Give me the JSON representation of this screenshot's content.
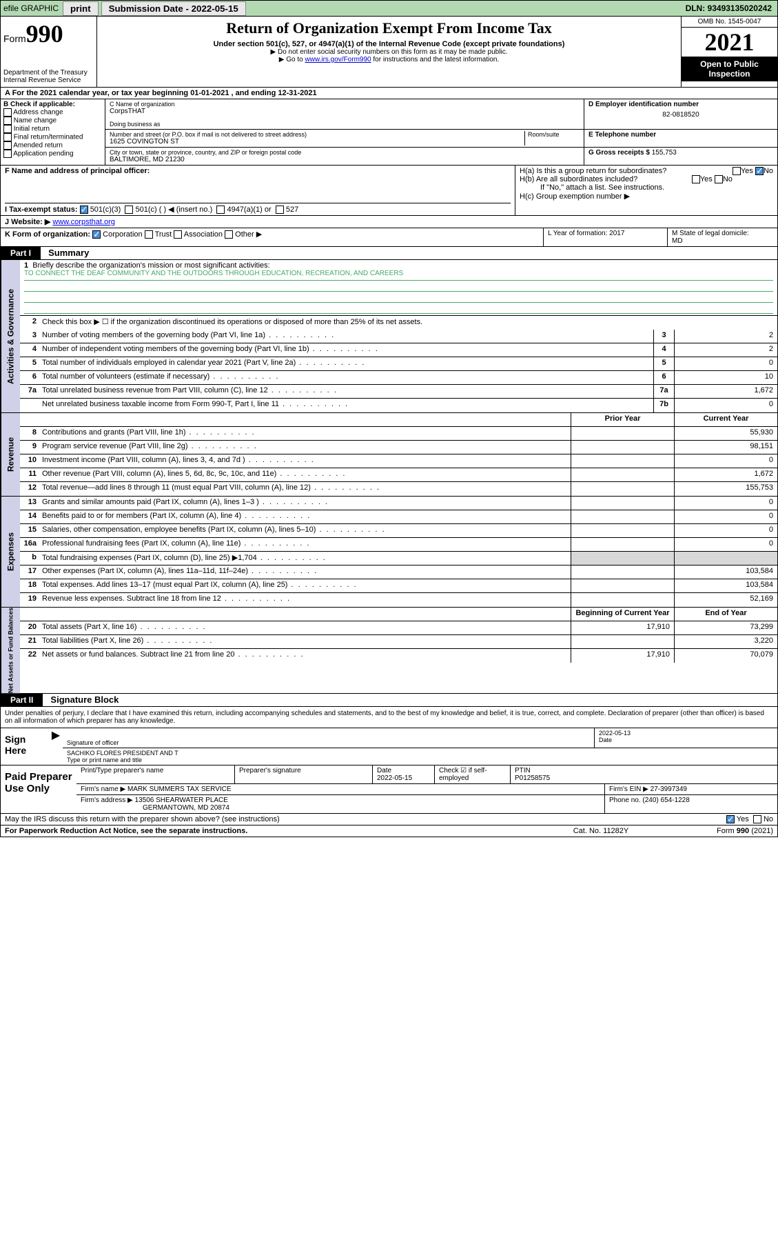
{
  "colors": {
    "topbar_bg": "#b3d9b3",
    "link": "#0000cc",
    "vtab_bg": "#d0d0e8",
    "shaded": "#d8d8d8",
    "check_bg": "#4a90d9",
    "mission_line": "#4a6"
  },
  "topbar": {
    "efile": "efile GRAPHIC",
    "print": "print",
    "sub_label": "Submission Date - 2022-05-15",
    "dln": "DLN: 93493135020242"
  },
  "header": {
    "form_prefix": "Form",
    "form_num": "990",
    "dept": "Department of the Treasury",
    "irs": "Internal Revenue Service",
    "title": "Return of Organization Exempt From Income Tax",
    "sub1": "Under section 501(c), 527, or 4947(a)(1) of the Internal Revenue Code (except private foundations)",
    "sub2": "▶ Do not enter social security numbers on this form as it may be made public.",
    "sub3_pre": "▶ Go to ",
    "sub3_link": "www.irs.gov/Form990",
    "sub3_post": " for instructions and the latest information.",
    "omb": "OMB No. 1545-0047",
    "year": "2021",
    "inspect1": "Open to Public",
    "inspect2": "Inspection"
  },
  "rowA": "A For the 2021 calendar year, or tax year beginning 01-01-2021   , and ending 12-31-2021",
  "boxB": {
    "label": "B Check if applicable:",
    "opts": [
      "Address change",
      "Name change",
      "Initial return",
      "Final return/terminated",
      "Amended return",
      "Application pending"
    ]
  },
  "boxC": {
    "name_lbl": "C Name of organization",
    "name": "CorpsTHAT",
    "dba_lbl": "Doing business as",
    "dba": "",
    "addr_lbl": "Number and street (or P.O. box if mail is not delivered to street address)",
    "room_lbl": "Room/suite",
    "addr": "1625 COVINGTON ST",
    "city_lbl": "City or town, state or province, country, and ZIP or foreign postal code",
    "city": "BALTIMORE, MD  21230"
  },
  "boxD": {
    "lbl": "D Employer identification number",
    "val": "82-0818520"
  },
  "boxE": {
    "lbl": "E Telephone number",
    "val": ""
  },
  "boxG": {
    "lbl": "G Gross receipts $",
    "val": "155,753"
  },
  "boxF": {
    "lbl": "F  Name and address of principal officer:",
    "val": ""
  },
  "boxH": {
    "ha": "H(a)  Is this a group return for subordinates?",
    "hb": "H(b)  Are all subordinates included?",
    "hb_note": "If \"No,\" attach a list. See instructions.",
    "hc": "H(c)  Group exemption number ▶",
    "yes": "Yes",
    "no": "No"
  },
  "boxI": {
    "lbl": "I    Tax-exempt status:",
    "o1": "501(c)(3)",
    "o2": "501(c) (   ) ◀ (insert no.)",
    "o3": "4947(a)(1) or",
    "o4": "527"
  },
  "boxJ": {
    "lbl": "J    Website: ▶",
    "val": "www.corpsthat.org"
  },
  "boxK": {
    "lbl": "K Form of organization:",
    "o1": "Corporation",
    "o2": "Trust",
    "o3": "Association",
    "o4": "Other ▶"
  },
  "boxL": {
    "lbl": "L Year of formation: 2017"
  },
  "boxM": {
    "lbl": "M State of legal domicile:",
    "val": "MD"
  },
  "partI": {
    "hdr": "Part I",
    "title": "Summary",
    "l1a": "Briefly describe the organization's mission or most significant activities:",
    "l1b": "TO CONNECT THE DEAF COMMUNITY AND THE OUTDOORS THROUGH EDUCATION, RECREATION, AND CAREERS",
    "l2": "Check this box ▶ ☐  if the organization discontinued its operations or disposed of more than 25% of its net assets.",
    "prior": "Prior Year",
    "current": "Current Year",
    "boy": "Beginning of Current Year",
    "eoy": "End of Year"
  },
  "lines_ag": [
    {
      "n": "3",
      "t": "Number of voting members of the governing body (Part VI, line 1a)",
      "box": "3",
      "v": "2"
    },
    {
      "n": "4",
      "t": "Number of independent voting members of the governing body (Part VI, line 1b)",
      "box": "4",
      "v": "2"
    },
    {
      "n": "5",
      "t": "Total number of individuals employed in calendar year 2021 (Part V, line 2a)",
      "box": "5",
      "v": "0"
    },
    {
      "n": "6",
      "t": "Total number of volunteers (estimate if necessary)",
      "box": "6",
      "v": "10"
    },
    {
      "n": "7a",
      "t": "Total unrelated business revenue from Part VIII, column (C), line 12",
      "box": "7a",
      "v": "1,672"
    },
    {
      "n": "",
      "t": "Net unrelated business taxable income from Form 990-T, Part I, line 11",
      "box": "7b",
      "v": "0"
    }
  ],
  "lines_rev": [
    {
      "n": "8",
      "t": "Contributions and grants (Part VIII, line 1h)",
      "p": "",
      "c": "55,930"
    },
    {
      "n": "9",
      "t": "Program service revenue (Part VIII, line 2g)",
      "p": "",
      "c": "98,151"
    },
    {
      "n": "10",
      "t": "Investment income (Part VIII, column (A), lines 3, 4, and 7d )",
      "p": "",
      "c": "0"
    },
    {
      "n": "11",
      "t": "Other revenue (Part VIII, column (A), lines 5, 6d, 8c, 9c, 10c, and 11e)",
      "p": "",
      "c": "1,672"
    },
    {
      "n": "12",
      "t": "Total revenue—add lines 8 through 11 (must equal Part VIII, column (A), line 12)",
      "p": "",
      "c": "155,753"
    }
  ],
  "lines_exp": [
    {
      "n": "13",
      "t": "Grants and similar amounts paid (Part IX, column (A), lines 1–3 )",
      "p": "",
      "c": "0"
    },
    {
      "n": "14",
      "t": "Benefits paid to or for members (Part IX, column (A), line 4)",
      "p": "",
      "c": "0"
    },
    {
      "n": "15",
      "t": "Salaries, other compensation, employee benefits (Part IX, column (A), lines 5–10)",
      "p": "",
      "c": "0"
    },
    {
      "n": "16a",
      "t": "Professional fundraising fees (Part IX, column (A), line 11e)",
      "p": "",
      "c": "0"
    },
    {
      "n": "b",
      "t": "Total fundraising expenses (Part IX, column (D), line 25) ▶1,704",
      "p": "shade",
      "c": "shade"
    },
    {
      "n": "17",
      "t": "Other expenses (Part IX, column (A), lines 11a–11d, 11f–24e)",
      "p": "",
      "c": "103,584"
    },
    {
      "n": "18",
      "t": "Total expenses. Add lines 13–17 (must equal Part IX, column (A), line 25)",
      "p": "",
      "c": "103,584"
    },
    {
      "n": "19",
      "t": "Revenue less expenses. Subtract line 18 from line 12",
      "p": "",
      "c": "52,169"
    }
  ],
  "lines_na": [
    {
      "n": "20",
      "t": "Total assets (Part X, line 16)",
      "p": "17,910",
      "c": "73,299"
    },
    {
      "n": "21",
      "t": "Total liabilities (Part X, line 26)",
      "p": "",
      "c": "3,220"
    },
    {
      "n": "22",
      "t": "Net assets or fund balances. Subtract line 21 from line 20",
      "p": "17,910",
      "c": "70,079"
    }
  ],
  "partII": {
    "hdr": "Part II",
    "title": "Signature Block"
  },
  "sig": {
    "declare": "Under penalties of perjury, I declare that I have examined this return, including accompanying schedules and statements, and to the best of my knowledge and belief, it is true, correct, and complete. Declaration of preparer (other than officer) is based on all information of which preparer has any knowledge.",
    "here": "Sign Here",
    "sig_lbl": "Signature of officer",
    "date_lbl": "Date",
    "date": "2022-05-13",
    "name": "SACHIKO FLORES  PRESIDENT AND T",
    "name_lbl": "Type or print name and title"
  },
  "prep": {
    "label": "Paid Preparer Use Only",
    "h1": "Print/Type preparer's name",
    "h2": "Preparer's signature",
    "h3": "Date",
    "h3v": "2022-05-15",
    "h4": "Check ☑ if self-employed",
    "h5": "PTIN",
    "h5v": "P01258575",
    "firm_lbl": "Firm's name    ▶",
    "firm": "MARK SUMMERS TAX SERVICE",
    "ein_lbl": "Firm's EIN ▶",
    "ein": "27-3997349",
    "addr_lbl": "Firm's address ▶",
    "addr1": "13506 SHEARWATER PLACE",
    "addr2": "GERMANTOWN, MD  20874",
    "phone_lbl": "Phone no.",
    "phone": "(240) 654-1228"
  },
  "may": {
    "q": "May the IRS discuss this return with the preparer shown above? (see instructions)",
    "yes": "Yes",
    "no": "No"
  },
  "footer": {
    "f1": "For Paperwork Reduction Act Notice, see the separate instructions.",
    "f2": "Cat. No. 11282Y",
    "f3": "Form 990 (2021)"
  }
}
